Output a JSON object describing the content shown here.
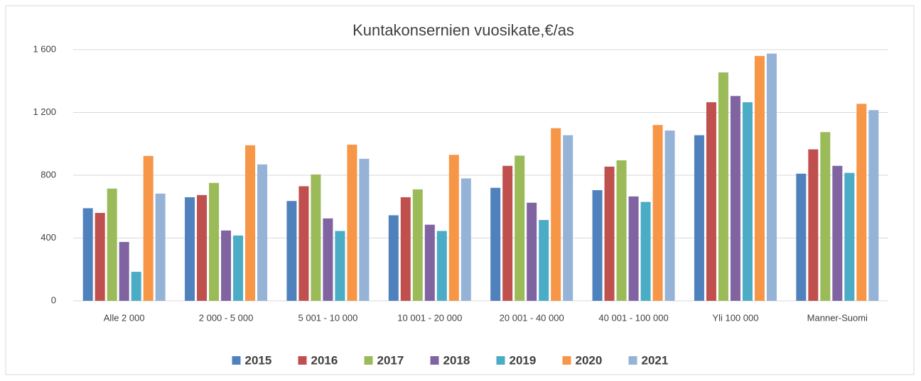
{
  "chart_data": {
    "type": "bar",
    "title": "Kuntakonsernien vuosikate,€/as",
    "categories": [
      "Alle 2 000",
      "2 000 - 5 000",
      "5 001 - 10 000",
      "10 001 - 20 000",
      "20 001 - 40 000",
      "40 001 - 100 000",
      "Yli 100 000",
      "Manner-Suomi"
    ],
    "series": [
      {
        "name": "2015",
        "color": "#4f81bd",
        "values": [
          590,
          660,
          636,
          545,
          720,
          705,
          1055,
          810
        ]
      },
      {
        "name": "2016",
        "color": "#c0504d",
        "values": [
          560,
          674,
          730,
          660,
          860,
          855,
          1265,
          965
        ]
      },
      {
        "name": "2017",
        "color": "#9bbb59",
        "values": [
          715,
          751,
          805,
          710,
          925,
          895,
          1455,
          1075
        ]
      },
      {
        "name": "2018",
        "color": "#8064a2",
        "values": [
          375,
          448,
          525,
          485,
          625,
          665,
          1305,
          860
        ]
      },
      {
        "name": "2019",
        "color": "#4bacc6",
        "values": [
          185,
          416,
          445,
          445,
          515,
          630,
          1265,
          815
        ]
      },
      {
        "name": "2020",
        "color": "#f79646",
        "values": [
          923,
          991,
          995,
          930,
          1100,
          1120,
          1560,
          1255
        ]
      },
      {
        "name": "2021",
        "color": "#95b3d7",
        "values": [
          683,
          869,
          905,
          780,
          1055,
          1085,
          1575,
          1215
        ]
      }
    ],
    "ylim": [
      0,
      1600
    ],
    "yticks": [
      0,
      400,
      800,
      {
        "value": 1200,
        "label": "1 200"
      },
      {
        "value": 1600,
        "label": "1 600"
      }
    ],
    "grid": true,
    "legend": "bottom"
  }
}
